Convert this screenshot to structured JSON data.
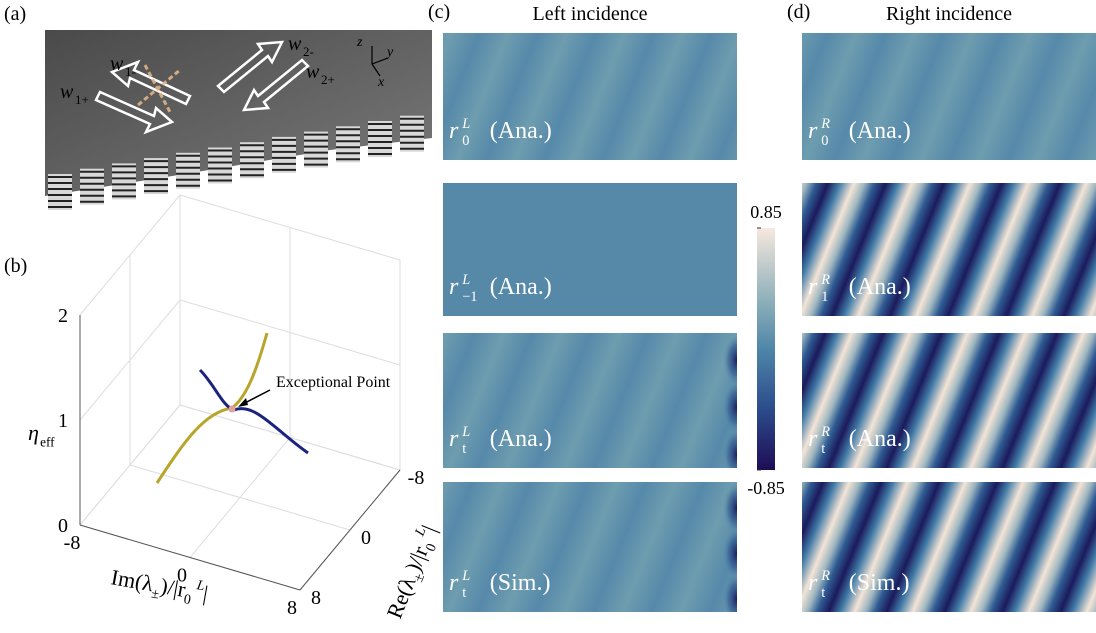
{
  "panel_a": {
    "label": "(a)",
    "waves": [
      {
        "base": "w",
        "sub": "1-"
      },
      {
        "base": "w",
        "sub": "1+"
      },
      {
        "base": "w",
        "sub": "2-"
      },
      {
        "base": "w",
        "sub": "2+"
      }
    ],
    "axes": [
      "z",
      "y",
      "x"
    ]
  },
  "panel_b": {
    "label": "(b)",
    "z_label": {
      "base": "η",
      "sub": "eff"
    },
    "zlim": [
      0,
      2
    ],
    "zticks": [
      0,
      1,
      2
    ],
    "xlim": [
      -8,
      8
    ],
    "xticks": [
      -8,
      0,
      8
    ],
    "ylim": [
      -8,
      8
    ],
    "yticks": [
      -8,
      0,
      8
    ],
    "x_label": [
      {
        "text": "Im(λ"
      },
      {
        "text": "±",
        "pos": "sub"
      },
      {
        "text": ")/|r"
      },
      {
        "text": "0",
        "pos": "sub"
      },
      {
        "text": " L",
        "pos": "sup"
      },
      {
        "text": "|"
      }
    ],
    "y_label": [
      {
        "text": "Re(λ"
      },
      {
        "text": "±",
        "pos": "sub"
      },
      {
        "text": ")/|r"
      },
      {
        "text": "0",
        "pos": "sub"
      },
      {
        "text": " L",
        "pos": "sup"
      },
      {
        "text": "|"
      }
    ],
    "annotation": "Exceptional Point",
    "colors": {
      "branch1": "#b8a52a",
      "branch2": "#1b237f"
    }
  },
  "panel_c": {
    "label": "(c)",
    "title": "Left incidence",
    "maps": [
      {
        "style": "faint",
        "label": {
          "base": "r",
          "sub": "0",
          "sup": "L",
          "note": "(Ana.)"
        }
      },
      {
        "style": "flat",
        "label": {
          "base": "r",
          "sub": "−1",
          "sup": "L",
          "note": "(Ana.)"
        }
      },
      {
        "style": "faint-edge",
        "label": {
          "base": "r",
          "sub": "t",
          "sup": "L",
          "note": "(Ana.)"
        }
      },
      {
        "style": "faint-edge",
        "label": {
          "base": "r",
          "sub": "t",
          "sup": "L",
          "note": "(Sim.)"
        }
      }
    ]
  },
  "panel_d": {
    "label": "(d)",
    "title": "Right incidence",
    "maps": [
      {
        "style": "faint",
        "label": {
          "base": "r",
          "sub": "0",
          "sup": "R",
          "note": "(Ana.)"
        }
      },
      {
        "style": "strong",
        "label": {
          "base": "r",
          "sub": "1",
          "sup": "R",
          "note": "(Ana.)"
        }
      },
      {
        "style": "strong",
        "label": {
          "base": "r",
          "sub": "t",
          "sup": "R",
          "note": "(Ana.)"
        }
      },
      {
        "style": "strong",
        "label": {
          "base": "r",
          "sub": "t",
          "sup": "R",
          "note": "(Sim.)"
        }
      }
    ]
  },
  "colorbar": {
    "clim": [
      -0.85,
      0.85
    ],
    "ticks": [
      -0.85,
      0.85
    ]
  }
}
